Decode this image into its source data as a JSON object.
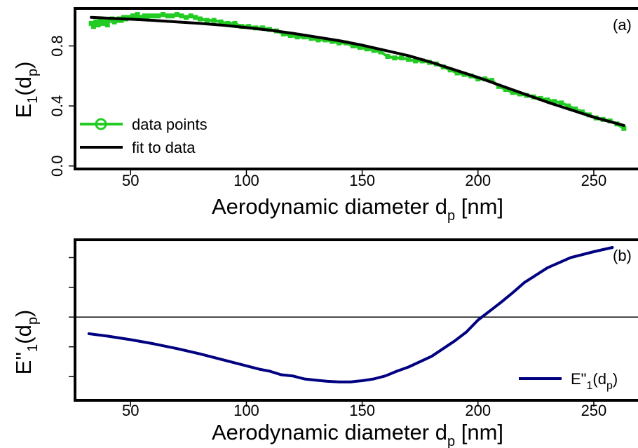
{
  "chart_data": [
    {
      "type": "line",
      "panel_label": "(a)",
      "xlabel_main": "Aerodynamic diameter d",
      "xlabel_sub": "p",
      "xlabel_end": " [nm]",
      "ylabel_main": "E",
      "ylabel_sub": "1",
      "ylabel_paren_open": "(d",
      "ylabel_paren_sub": "p",
      "ylabel_paren_close": ")",
      "xlim": [
        26,
        270
      ],
      "ylim": [
        -0.02,
        1.05
      ],
      "x_ticks": [
        50,
        100,
        150,
        200,
        250
      ],
      "x_tick_labels": [
        "50",
        "100",
        "150",
        "200",
        "250"
      ],
      "y_ticks": [
        0.0,
        0.4,
        0.8
      ],
      "y_tick_labels": [
        "0.0",
        "0.4",
        "0.8"
      ],
      "legend_position": "bottom-left",
      "grid": false,
      "series": [
        {
          "name": "data points",
          "color": "#22cc22",
          "style": "line-with-markers",
          "x": [
            33,
            34,
            35,
            36,
            37,
            38,
            39,
            40,
            41,
            42,
            43,
            44,
            45,
            46,
            47,
            48,
            49,
            50,
            51,
            52,
            53,
            54,
            55,
            56,
            57,
            58,
            60,
            62,
            64,
            66,
            68,
            70,
            72,
            74,
            76,
            78,
            80,
            83,
            86,
            89,
            92,
            95,
            98,
            101,
            104,
            107,
            110,
            113,
            116,
            119,
            122,
            125,
            128,
            131,
            134,
            137,
            140,
            143,
            146,
            149,
            152,
            155,
            158,
            161,
            164,
            167,
            170,
            173,
            176,
            179,
            182,
            185,
            188,
            191,
            194,
            197,
            200,
            203,
            206,
            209,
            212,
            215,
            218,
            221,
            224,
            227,
            230,
            233,
            236,
            239,
            242,
            245,
            248,
            251,
            254,
            257,
            260,
            263
          ],
          "y": [
            0.95,
            0.93,
            0.96,
            0.94,
            0.97,
            0.95,
            0.96,
            0.94,
            0.97,
            0.98,
            0.96,
            0.97,
            0.98,
            0.97,
            0.99,
            0.98,
            0.99,
            0.99,
            1.0,
            1.0,
            1.01,
            0.99,
            0.99,
            1.0,
            0.99,
            1.0,
            1.0,
            1.0,
            1.01,
            1.0,
            1.0,
            1.01,
            1.0,
            0.99,
            1.0,
            0.99,
            0.98,
            0.97,
            0.97,
            0.96,
            0.95,
            0.95,
            0.93,
            0.93,
            0.92,
            0.92,
            0.91,
            0.9,
            0.88,
            0.87,
            0.86,
            0.86,
            0.85,
            0.84,
            0.84,
            0.83,
            0.82,
            0.82,
            0.8,
            0.79,
            0.78,
            0.77,
            0.76,
            0.73,
            0.72,
            0.72,
            0.71,
            0.7,
            0.7,
            0.69,
            0.68,
            0.66,
            0.64,
            0.62,
            0.61,
            0.6,
            0.58,
            0.58,
            0.57,
            0.53,
            0.51,
            0.49,
            0.48,
            0.47,
            0.46,
            0.45,
            0.44,
            0.43,
            0.42,
            0.4,
            0.38,
            0.36,
            0.34,
            0.32,
            0.31,
            0.3,
            0.28,
            0.25
          ]
        },
        {
          "name": "fit to data",
          "color": "#000000",
          "style": "line",
          "x": [
            33,
            40,
            50,
            60,
            70,
            80,
            90,
            100,
            110,
            120,
            130,
            140,
            150,
            160,
            170,
            180,
            190,
            200,
            210,
            220,
            230,
            240,
            250,
            263
          ],
          "y": [
            0.99,
            0.985,
            0.978,
            0.97,
            0.96,
            0.95,
            0.938,
            0.922,
            0.905,
            0.884,
            0.86,
            0.835,
            0.805,
            0.77,
            0.735,
            0.69,
            0.64,
            0.59,
            0.535,
            0.48,
            0.425,
            0.375,
            0.325,
            0.27
          ]
        }
      ]
    },
    {
      "type": "line",
      "panel_label": "(b)",
      "xlabel_main": "Aerodynamic diameter d",
      "xlabel_sub": "p",
      "xlabel_end": " [nm]",
      "ylabel_main": "E''",
      "ylabel_sub": "1",
      "ylabel_paren_open": "(d",
      "ylabel_paren_sub": "p",
      "ylabel_paren_close": ")",
      "xlim": [
        26,
        270
      ],
      "ylim": [
        -1.4,
        1.3
      ],
      "x_ticks": [
        50,
        100,
        150,
        200,
        250
      ],
      "x_tick_labels": [
        "50",
        "100",
        "150",
        "200",
        "250"
      ],
      "y_ticks": [
        -1.0,
        -0.5,
        0.0,
        0.5,
        1.0
      ],
      "y_tick_labels": [
        "",
        "",
        "",
        "",
        ""
      ],
      "zero_line": true,
      "legend_position": "bottom-right",
      "grid": false,
      "series": [
        {
          "name": "E\"1(dp)",
          "legend_main": "E\"",
          "legend_sub": "1",
          "legend_paren_open": "(d",
          "legend_paren_sub": "p",
          "legend_paren_close": ")",
          "color": "#000080",
          "style": "line",
          "x": [
            32,
            40,
            50,
            60,
            70,
            80,
            90,
            100,
            106,
            110,
            115,
            120,
            125,
            130,
            135,
            140,
            145,
            150,
            155,
            160,
            165,
            170,
            180,
            190,
            195,
            200,
            205,
            210,
            215,
            220,
            230,
            240,
            250,
            258
          ],
          "y": [
            -0.28,
            -0.32,
            -0.38,
            -0.45,
            -0.53,
            -0.62,
            -0.72,
            -0.82,
            -0.88,
            -0.91,
            -0.97,
            -0.99,
            -1.04,
            -1.06,
            -1.08,
            -1.09,
            -1.09,
            -1.07,
            -1.04,
            -0.99,
            -0.91,
            -0.84,
            -0.66,
            -0.4,
            -0.25,
            -0.05,
            0.1,
            0.25,
            0.41,
            0.58,
            0.83,
            1.0,
            1.1,
            1.17
          ]
        }
      ]
    }
  ]
}
